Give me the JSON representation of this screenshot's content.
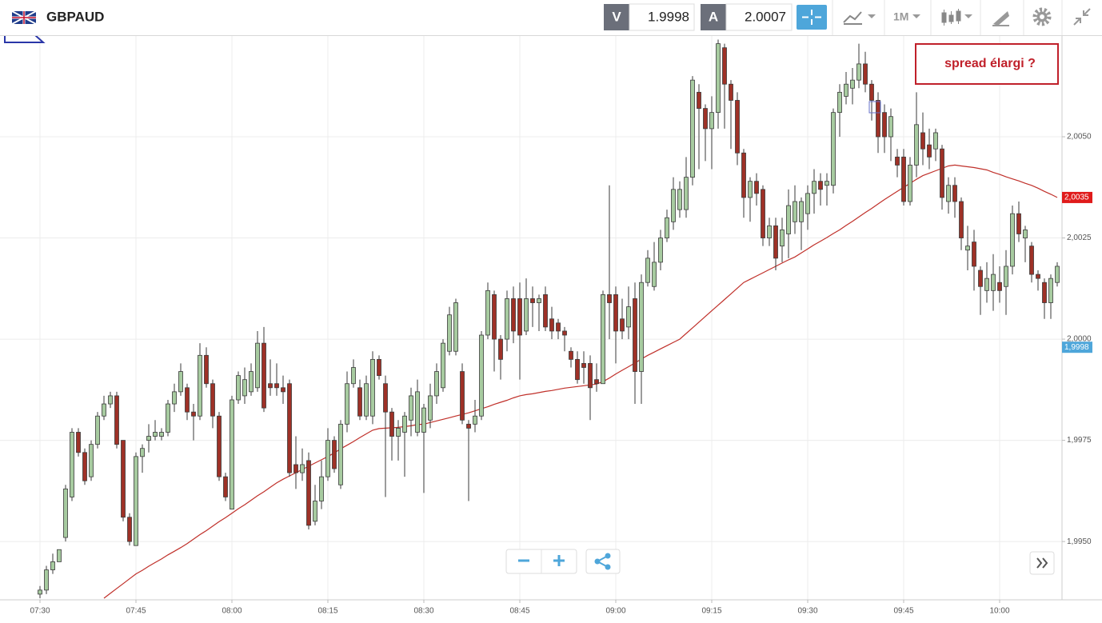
{
  "toolbar": {
    "symbol": "GBPAUD",
    "bid_label": "V",
    "bid": "1.9998",
    "ask_label": "A",
    "ask": "2.0007",
    "interval": "1M"
  },
  "chart_data": {
    "type": "candlestick",
    "title": "GBPAUD",
    "annotation": "spread élargi ?",
    "categories": [
      "07:30",
      null,
      null,
      null,
      null,
      null,
      null,
      null,
      null,
      null,
      null,
      null,
      null,
      null,
      null,
      "07:45",
      null,
      null,
      null,
      null,
      null,
      null,
      null,
      null,
      null,
      null,
      null,
      null,
      null,
      null,
      "08:00",
      null,
      null,
      null,
      null,
      null,
      null,
      null,
      null,
      null,
      null,
      null,
      null,
      null,
      null,
      "08:15",
      null,
      null,
      null,
      null,
      null,
      null,
      null,
      null,
      null,
      null,
      null,
      null,
      null,
      null,
      "08:30",
      null,
      null,
      null,
      null,
      null,
      null,
      null,
      null,
      null,
      null,
      null,
      null,
      null,
      null,
      "08:45",
      null,
      null,
      null,
      null,
      null,
      null,
      null,
      null,
      null,
      null,
      null,
      null,
      null,
      null,
      "09:00",
      null,
      null,
      null,
      null,
      null,
      null,
      null,
      null,
      null,
      null,
      null,
      null,
      null,
      null,
      "09:15",
      null,
      null,
      null,
      null,
      null,
      null,
      null,
      null,
      null,
      null,
      null,
      null,
      null,
      null,
      "09:30",
      null,
      null,
      null,
      null,
      null,
      null,
      null,
      null,
      null,
      null,
      null,
      null,
      null,
      null,
      "09:45",
      null,
      null,
      null,
      null,
      null,
      null,
      null,
      null,
      null,
      null,
      null,
      null,
      null,
      null,
      "10:00",
      null,
      null,
      null,
      null,
      null,
      null,
      null,
      null,
      null
    ],
    "open": [
      1.9937,
      1.9938,
      1.9943,
      1.9945,
      1.9951,
      1.9961,
      1.9977,
      1.9972,
      1.9966,
      1.9974,
      1.9981,
      1.9984,
      1.9986,
      1.9975,
      1.9956,
      1.9949,
      1.9971,
      1.9975,
      1.9976,
      1.9976,
      1.9977,
      1.9984,
      1.9987,
      1.9988,
      1.9982,
      1.9981,
      1.9996,
      1.9989,
      1.9981,
      1.9966,
      1.9958,
      1.9985,
      1.9986,
      1.9987,
      1.9988,
      1.9999,
      1.9989,
      1.9989,
      1.9988,
      1.9989,
      1.9969,
      1.9967,
      1.997,
      1.9955,
      1.996,
      1.9966,
      1.9975,
      1.9964,
      1.9979,
      1.9989,
      1.9988,
      1.9981,
      1.9981,
      1.9995,
      1.9989,
      1.9982,
      1.9976,
      1.9977,
      1.998,
      1.9977,
      1.9977,
      1.998,
      1.9986,
      1.9988,
      1.9997,
      1.9997,
      1.9992,
      1.9979,
      1.9979,
      1.9981,
      2.0001,
      2.0011,
      2.0,
      2.0,
      2.001,
      2.001,
      2.0002,
      2.001,
      2.0009,
      2.0011,
      2.0005,
      2.0004,
      2.0002,
      1.9997,
      1.9995,
      1.9994,
      1.9994,
      1.999,
      1.9989,
      2.0011,
      2.0011,
      2.0005,
      2.0003,
      2.001,
      1.9992,
      2.0014,
      2.0013,
      2.0019,
      2.0025,
      2.0029,
      2.0032,
      2.0032,
      2.004,
      2.0061,
      2.0057,
      2.0052,
      2.0056,
      2.0072,
      2.0063,
      2.0059,
      2.0046,
      2.0035,
      2.0039,
      2.0037,
      2.0025,
      2.0028,
      2.0023,
      2.0026,
      2.0029,
      2.0029,
      2.0031,
      2.0036,
      2.0039,
      2.0038,
      2.0038,
      2.0056,
      2.006,
      2.0062,
      2.0064,
      2.0068,
      2.0063,
      2.0059,
      2.0056,
      2.005,
      2.0045,
      2.0045,
      2.0034,
      2.0043,
      2.0051,
      2.0048,
      2.0047,
      2.0047,
      2.0034,
      2.0038,
      2.0034,
      2.0022,
      2.0024,
      2.0017,
      2.0012,
      2.0012,
      2.0014,
      2.0013,
      2.0018,
      2.0031,
      2.0025,
      2.0023,
      2.0016,
      2.0014,
      2.0009,
      2.0014
    ],
    "high": [
      1.9939,
      1.9944,
      1.9947,
      1.9948,
      1.9964,
      1.9978,
      1.9978,
      1.9973,
      1.9975,
      1.9982,
      1.9986,
      1.9987,
      1.9987,
      1.9975,
      1.9957,
      1.9972,
      1.9974,
      1.9979,
      1.998,
      1.9978,
      1.9985,
      1.9989,
      1.9994,
      1.9989,
      1.9984,
      1.9999,
      1.9998,
      1.999,
      1.9982,
      1.9967,
      1.9986,
      1.9992,
      1.9993,
      1.9994,
      2.0002,
      2.0003,
      1.9995,
      1.9994,
      1.9991,
      1.999,
      1.9976,
      1.9973,
      1.9972,
      1.9964,
      1.997,
      1.9978,
      1.9976,
      1.998,
      1.9992,
      1.9995,
      1.999,
      1.9991,
      1.9997,
      1.9996,
      1.9991,
      1.9983,
      1.998,
      1.9982,
      1.9988,
      1.999,
      1.9984,
      1.9989,
      1.9994,
      2.0,
      2.0008,
      2.001,
      1.9994,
      1.998,
      1.9985,
      2.0002,
      2.0014,
      2.0012,
      2.0001,
      2.0012,
      2.0013,
      2.0014,
      2.0015,
      2.0013,
      2.0011,
      2.0013,
      2.0008,
      2.0005,
      2.0003,
      1.9998,
      1.9997,
      1.9997,
      1.9996,
      1.9994,
      2.0012,
      2.0038,
      2.0013,
      2.001,
      2.0013,
      2.0014,
      2.0016,
      2.0022,
      2.0024,
      2.0027,
      2.0032,
      2.004,
      2.0039,
      2.0045,
      2.0065,
      2.0063,
      2.0058,
      2.006,
      2.0074,
      2.0073,
      2.0064,
      2.0061,
      2.0047,
      2.004,
      2.0041,
      2.0038,
      2.003,
      2.003,
      2.003,
      2.0037,
      2.0038,
      2.0035,
      2.0038,
      2.0042,
      2.0041,
      2.0041,
      2.0057,
      2.0063,
      2.0066,
      2.0067,
      2.0073,
      2.0071,
      2.0064,
      2.0061,
      2.0058,
      2.0057,
      2.0047,
      2.0047,
      2.0045,
      2.0061,
      2.0056,
      2.0052,
      2.0052,
      2.0048,
      2.004,
      2.004,
      2.0035,
      2.0028,
      2.0027,
      2.0018,
      2.0019,
      2.0021,
      2.0018,
      2.0022,
      2.0033,
      2.0034,
      2.0028,
      2.0024,
      2.0017,
      2.0015,
      2.0016,
      2.0019
    ],
    "low": [
      1.9936,
      1.9937,
      1.9942,
      1.9945,
      1.995,
      1.996,
      1.9971,
      1.9964,
      1.9965,
      1.9973,
      1.998,
      1.9983,
      1.9973,
      1.9955,
      1.9949,
      1.9949,
      1.9967,
      1.9972,
      1.9975,
      1.9975,
      1.9976,
      1.9982,
      1.9986,
      1.998,
      1.9975,
      1.998,
      1.9988,
      1.9978,
      1.9965,
      1.996,
      1.9958,
      1.9984,
      1.9984,
      1.9986,
      1.9987,
      1.9982,
      1.9986,
      1.9986,
      1.9984,
      1.9966,
      1.9963,
      1.9965,
      1.9953,
      1.9954,
      1.9958,
      1.9965,
      1.9967,
      1.9963,
      1.9977,
      1.9988,
      1.998,
      1.998,
      1.9979,
      1.999,
      1.9961,
      1.997,
      1.997,
      1.9966,
      1.9976,
      1.9976,
      1.9962,
      1.9978,
      1.9984,
      1.9987,
      1.9996,
      1.9996,
      1.9979,
      1.996,
      1.9977,
      1.998,
      2.0,
      1.9992,
      1.999,
      1.9997,
      1.9999,
      1.999,
      2.0001,
      2.0003,
      2.0002,
      2.0002,
      2.0,
      2.0,
      1.9997,
      1.9993,
      1.9989,
      1.9989,
      1.998,
      1.9987,
      1.9989,
      2.0,
      1.9994,
      2.0,
      2.0,
      1.9984,
      1.9984,
      2.0013,
      2.0012,
      2.0017,
      2.0024,
      2.0027,
      2.003,
      2.003,
      2.0038,
      2.0042,
      2.0044,
      2.0042,
      2.0052,
      2.0052,
      2.0047,
      2.0043,
      2.003,
      2.0029,
      2.0033,
      2.0023,
      2.0023,
      2.0017,
      2.0019,
      2.002,
      2.0026,
      2.0022,
      2.0027,
      2.0031,
      2.0033,
      2.0033,
      2.0036,
      2.005,
      2.0058,
      2.0058,
      2.0062,
      2.0061,
      2.0054,
      2.0046,
      2.0046,
      2.0044,
      2.004,
      2.0033,
      2.0033,
      2.004,
      2.0043,
      2.0042,
      2.0044,
      2.0032,
      2.0031,
      2.003,
      2.0022,
      2.0017,
      2.0012,
      2.0006,
      2.0009,
      2.0007,
      2.0009,
      2.0006,
      2.0016,
      2.0024,
      2.0019,
      2.0014,
      2.0012,
      2.0005,
      2.0005,
      2.0013
    ],
    "close": [
      1.9938,
      1.9943,
      1.9945,
      1.9948,
      1.9963,
      1.9977,
      1.9972,
      1.9965,
      1.9974,
      1.9981,
      1.9984,
      1.9986,
      1.9974,
      1.9956,
      1.995,
      1.9971,
      1.9973,
      1.9976,
      1.9977,
      1.9977,
      1.9984,
      1.9987,
      1.9992,
      1.9982,
      1.9981,
      1.9996,
      1.9989,
      1.9981,
      1.9966,
      1.9961,
      1.9985,
      1.9991,
      1.999,
      1.9992,
      1.9999,
      1.9983,
      1.9988,
      1.9988,
      1.9987,
      1.9967,
      1.9967,
      1.9969,
      1.9954,
      1.996,
      1.9966,
      1.9975,
      1.9968,
      1.9979,
      1.9989,
      1.9993,
      1.9981,
      1.9989,
      1.9995,
      1.9991,
      1.9982,
      1.9976,
      1.9978,
      1.9981,
      1.9986,
      1.9987,
      1.9983,
      1.9986,
      1.9992,
      1.9999,
      2.0006,
      2.0009,
      1.998,
      1.9978,
      1.9981,
      2.0001,
      2.0012,
      2.0,
      1.9995,
      2.001,
      2.0002,
      2.0001,
      2.001,
      2.0009,
      2.001,
      2.0003,
      2.0002,
      2.0002,
      2.0001,
      1.9995,
      1.999,
      1.9993,
      1.9988,
      1.9989,
      2.0011,
      2.0009,
      2.0002,
      2.0002,
      2.0008,
      1.9992,
      2.0014,
      2.002,
      2.0019,
      2.0025,
      2.003,
      2.0037,
      2.0037,
      2.004,
      2.0064,
      2.0057,
      2.0052,
      2.0056,
      2.0073,
      2.0063,
      2.0059,
      2.0046,
      2.0035,
      2.0039,
      2.0036,
      2.0025,
      2.0028,
      2.002,
      2.0027,
      2.0033,
      2.0034,
      2.0034,
      2.0036,
      2.0039,
      2.0037,
      2.0039,
      2.0056,
      2.0061,
      2.0063,
      2.0064,
      2.0068,
      2.0063,
      2.0059,
      2.005,
      2.005,
      2.0055,
      2.0043,
      2.0034,
      2.0043,
      2.0053,
      2.0047,
      2.0045,
      2.0051,
      2.0035,
      2.0038,
      2.0034,
      2.0025,
      2.0023,
      2.0018,
      2.0013,
      2.0015,
      2.0016,
      2.0012,
      2.0018,
      2.0031,
      2.0026,
      2.0027,
      2.0016,
      2.0015,
      2.0009,
      2.0015,
      2.0018
    ],
    "up_color": "#a7cba0",
    "down_color": "#9e3127",
    "moving_average": {
      "color": "#c0302a",
      "values": [
        null,
        null,
        null,
        null,
        null,
        null,
        null,
        null,
        null,
        null,
        1.9936,
        1.99372,
        1.99384,
        1.99396,
        1.99408,
        1.9942,
        1.99429,
        1.99439,
        1.99448,
        1.99457,
        1.99467,
        1.99476,
        1.99485,
        1.99495,
        1.99506,
        1.99517,
        1.99527,
        1.99538,
        1.99549,
        1.99559,
        1.9957,
        1.99581,
        1.99591,
        1.99602,
        1.99613,
        1.99623,
        1.99634,
        1.99645,
        1.99654,
        1.99662,
        1.9967,
        1.99678,
        1.99686,
        1.99694,
        1.99702,
        1.9971,
        1.99719,
        1.99729,
        1.99738,
        1.99747,
        1.99757,
        1.99766,
        1.99775,
        1.99779,
        1.9978,
        1.99781,
        1.99782,
        1.99784,
        1.99786,
        1.99789,
        1.9979,
        1.99794,
        1.99798,
        1.99802,
        1.99806,
        1.9981,
        1.99814,
        1.99818,
        1.99823,
        1.99828,
        1.99833,
        1.99839,
        1.99844,
        1.99849,
        1.99855,
        1.9986,
        1.99863,
        1.99865,
        1.99868,
        1.99871,
        1.99873,
        1.99876,
        1.99879,
        1.99881,
        1.99883,
        1.99885,
        1.99887,
        1.99889,
        1.99895,
        1.99904,
        1.99914,
        1.99923,
        1.99932,
        1.99941,
        1.99951,
        1.9996,
        1.99968,
        1.99976,
        1.99984,
        1.99992,
        2.0,
        2.00014,
        2.00028,
        2.00042,
        2.00056,
        2.0007,
        2.00084,
        2.00098,
        2.00112,
        2.00126,
        2.0014,
        2.00148,
        2.00156,
        2.00164,
        2.00172,
        2.0018,
        2.00188,
        2.00196,
        2.00203,
        2.00213,
        2.00223,
        2.00233,
        2.00242,
        2.00251,
        2.00261,
        2.0027,
        2.00281,
        2.00291,
        2.00302,
        2.00313,
        2.00323,
        2.00334,
        2.00345,
        2.00355,
        2.00365,
        2.00375,
        2.00385,
        2.00395,
        2.00404,
        2.0041,
        2.00416,
        2.00422,
        2.00428,
        2.0043,
        2.00428,
        2.00426,
        2.00424,
        2.00421,
        2.00418,
        2.00412,
        2.00407,
        2.00401,
        2.00396,
        2.00391,
        2.00385,
        2.0038,
        2.00373,
        2.00365,
        2.00358,
        2.0035
      ]
    },
    "ylim": [
      1.99356,
      2.00749
    ],
    "yticks": [
      {
        "value": 1.995,
        "label": "1,9950"
      },
      {
        "value": 1.9975,
        "label": "1,9975"
      },
      {
        "value": 2.0,
        "label": "2,0000"
      },
      {
        "value": 2.0025,
        "label": "2,0025"
      },
      {
        "value": 2.005,
        "label": "2,0050"
      }
    ],
    "price_markers": [
      {
        "value": 2.0035,
        "label": "2,0035",
        "color": "#e01b1b"
      },
      {
        "value": 1.9998,
        "label": "1,9998",
        "color": "#4ea6da"
      }
    ],
    "grid": true
  }
}
